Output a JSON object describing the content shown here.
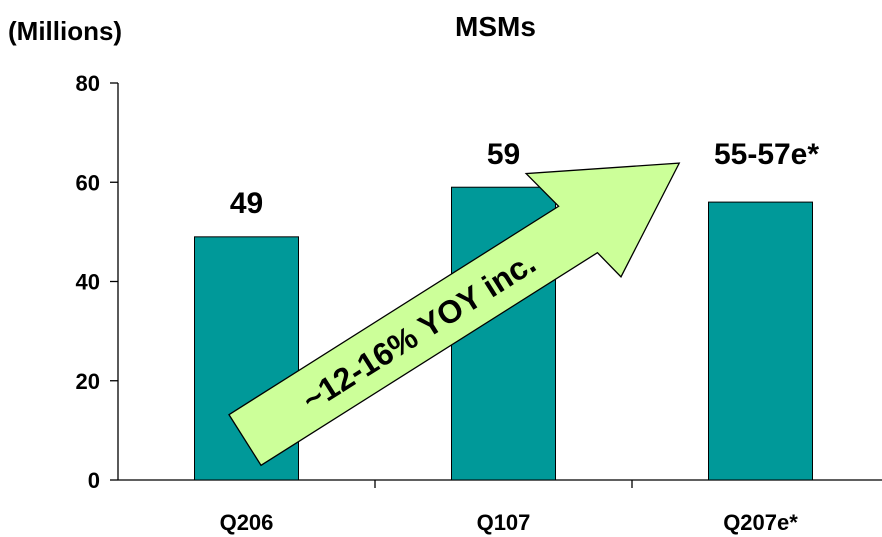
{
  "chart_data": {
    "type": "bar",
    "title": "MSMs",
    "unit_label": "(Millions)",
    "xlabel": "",
    "ylabel": "",
    "categories": [
      "Q206",
      "Q107",
      "Q207e*"
    ],
    "values": [
      49,
      59,
      56
    ],
    "data_labels": [
      "49",
      "59",
      "55-57e*"
    ],
    "ylim": [
      0,
      80
    ],
    "yticks": [
      0,
      20,
      40,
      60,
      80
    ],
    "grid": false,
    "legend": "none",
    "bar_color": "#009999",
    "annotation": {
      "text": "~12-16% YOY inc.",
      "shape": "arrow",
      "fill_color": "#CCFF99"
    }
  }
}
